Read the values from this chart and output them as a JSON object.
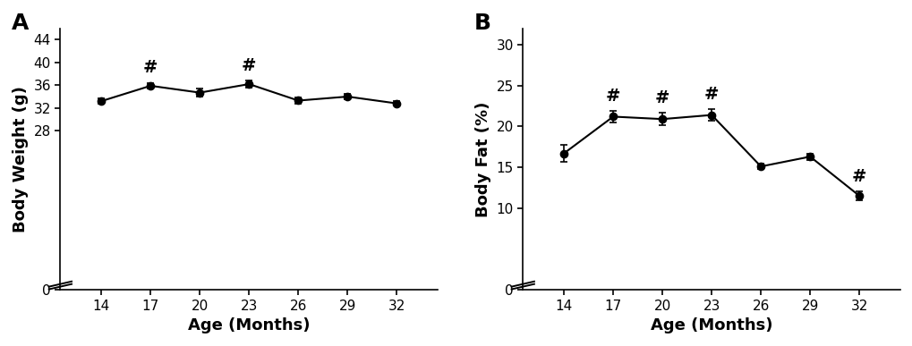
{
  "panel_A": {
    "label": "A",
    "x": [
      14,
      17,
      20,
      23,
      26,
      29,
      32
    ],
    "y": [
      33.2,
      35.9,
      34.7,
      36.2,
      33.3,
      34.0,
      32.8
    ],
    "yerr": [
      0.5,
      0.5,
      0.7,
      0.6,
      0.5,
      0.5,
      0.4
    ],
    "hash_indices": [
      1,
      3
    ],
    "hash_above": [
      true,
      true
    ],
    "ylabel": "Body Weight (g)",
    "xlabel": "Age (Months)",
    "yticks": [
      0,
      28,
      32,
      36,
      40,
      44
    ],
    "ylim": [
      0,
      46
    ],
    "xlim": [
      11.5,
      34.5
    ]
  },
  "panel_B": {
    "label": "B",
    "x": [
      14,
      17,
      20,
      23,
      26,
      29,
      32
    ],
    "y": [
      16.7,
      21.2,
      20.9,
      21.4,
      15.1,
      16.3,
      11.5
    ],
    "yerr": [
      1.0,
      0.7,
      0.8,
      0.7,
      0.3,
      0.4,
      0.5
    ],
    "hash_indices": [
      1,
      2,
      3,
      6
    ],
    "hash_above": [
      true,
      true,
      true,
      true
    ],
    "ylabel": "Body Fat (%)",
    "xlabel": "Age (Months)",
    "yticks": [
      0,
      10,
      15,
      20,
      25,
      30
    ],
    "ylim": [
      0,
      32
    ],
    "xlim": [
      11.5,
      34.5
    ]
  },
  "line_color": "#000000",
  "markersize": 6,
  "capsize": 3,
  "hash_fontsize": 14,
  "axis_label_fontsize": 13,
  "tick_fontsize": 11,
  "panel_label_fontsize": 18,
  "background_color": "#ffffff",
  "linewidth": 1.5,
  "elinewidth": 1.2,
  "capthick": 1.2
}
